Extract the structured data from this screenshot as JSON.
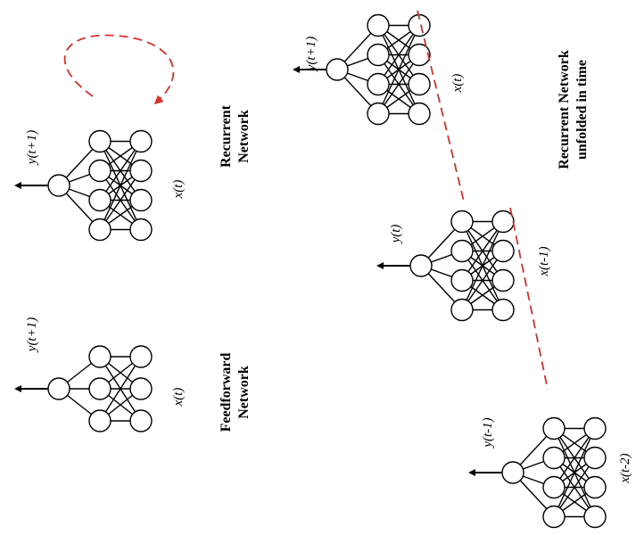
{
  "captions": {
    "feedforward": [
      "Feedforward",
      "Network"
    ],
    "recurrent": [
      "Recurrent",
      "Network"
    ],
    "unfolded": [
      "Recurrent Network",
      "unfolded in time"
    ]
  },
  "labels": {
    "ff_output": "y(t+1)",
    "ff_input": "x(t)",
    "rec_output": "y(t+1)",
    "rec_input": "x(t)",
    "unf_top_output": "y(t+1)",
    "unf_top_input": "x(t)",
    "unf_mid_output": "y(t)",
    "unf_mid_input": "x(t-1)",
    "unf_bot_output": "y(t-1)",
    "unf_bot_input": "x(t-2)"
  },
  "colors": {
    "recurrent_link": "#d9302b",
    "stroke": "#000000"
  }
}
